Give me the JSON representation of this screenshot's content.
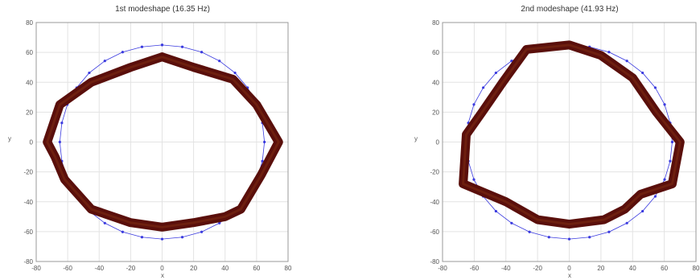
{
  "chart_data": [
    {
      "type": "line",
      "title": "1st modeshape (16.35 Hz)",
      "xlabel": "x",
      "ylabel": "y",
      "xlim": [
        -80,
        80
      ],
      "ylim": [
        -80,
        80
      ],
      "xticks": [
        -80,
        -60,
        -40,
        -20,
        0,
        20,
        40,
        60,
        80
      ],
      "yticks": [
        -80,
        -60,
        -40,
        -20,
        0,
        20,
        40,
        60,
        80
      ],
      "grid": true,
      "series": [
        {
          "role": "undeformed",
          "color": "#3a3adf",
          "marker": "dot",
          "x": [
            0,
            12.8,
            25.1,
            36.4,
            46.3,
            54.3,
            60.2,
            63.7,
            65,
            63.7,
            60.2,
            54.3,
            46.3,
            36.4,
            25.1,
            12.8,
            0,
            -12.8,
            -25.1,
            -36.4,
            -46.3,
            -54.3,
            -60.2,
            -63.7,
            -65,
            -63.7,
            -60.2,
            -54.3,
            -46.3,
            -36.4,
            -25.1,
            -12.8,
            0
          ],
          "y": [
            65,
            63.7,
            60.2,
            54.3,
            46.3,
            36.4,
            25.1,
            12.8,
            0,
            -12.8,
            -25.1,
            -36.4,
            -46.3,
            -54.3,
            -60.2,
            -63.7,
            -65,
            -63.7,
            -60.2,
            -54.3,
            -46.3,
            -36.4,
            -25.1,
            -12.8,
            0,
            12.8,
            25.1,
            36.4,
            46.3,
            54.3,
            60.2,
            63.7,
            65
          ]
        },
        {
          "role": "deformed",
          "color": "#5a0f0b",
          "x": [
            0,
            20,
            45,
            60,
            74,
            63,
            50,
            40,
            20,
            0,
            -20,
            -45,
            -62,
            -68,
            -73,
            -65,
            -45,
            -20,
            0
          ],
          "y": [
            57,
            50,
            42,
            25,
            0,
            -22,
            -45,
            -50,
            -54,
            -57,
            -54,
            -45,
            -25,
            -10,
            0,
            25,
            40,
            50,
            57
          ]
        }
      ]
    },
    {
      "type": "line",
      "title": "2nd modeshape (41.93 Hz)",
      "xlabel": "x",
      "ylabel": "y",
      "xlim": [
        -80,
        80
      ],
      "ylim": [
        -80,
        80
      ],
      "xticks": [
        -80,
        -60,
        -40,
        -20,
        0,
        20,
        40,
        60,
        80
      ],
      "yticks": [
        -80,
        -60,
        -40,
        -20,
        0,
        20,
        40,
        60,
        80
      ],
      "grid": true,
      "series": [
        {
          "role": "undeformed",
          "color": "#3a3adf",
          "marker": "dot",
          "x": [
            0,
            12.8,
            25.1,
            36.4,
            46.3,
            54.3,
            60.2,
            63.7,
            65,
            63.7,
            60.2,
            54.3,
            46.3,
            36.4,
            25.1,
            12.8,
            0,
            -12.8,
            -25.1,
            -36.4,
            -46.3,
            -54.3,
            -60.2,
            -63.7,
            -65,
            -63.7,
            -60.2,
            -54.3,
            -46.3,
            -36.4,
            -25.1,
            -12.8,
            0
          ],
          "y": [
            65,
            63.7,
            60.2,
            54.3,
            46.3,
            36.4,
            25.1,
            12.8,
            0,
            -12.8,
            -25.1,
            -36.4,
            -46.3,
            -54.3,
            -60.2,
            -63.7,
            -65,
            -63.7,
            -60.2,
            -54.3,
            -46.3,
            -36.4,
            -25.1,
            -12.8,
            0,
            12.8,
            25.1,
            36.4,
            46.3,
            54.3,
            60.2,
            63.7,
            65
          ]
        },
        {
          "role": "deformed",
          "color": "#5a0f0b",
          "x": [
            0,
            20,
            40,
            55,
            70,
            65,
            45,
            35,
            22,
            0,
            -20,
            -40,
            -67,
            -65,
            -55,
            -42,
            -27,
            0
          ],
          "y": [
            65,
            58,
            43,
            20,
            0,
            -28,
            -35,
            -45,
            -52,
            -55,
            -52,
            -40,
            -28,
            5,
            20,
            40,
            62,
            65
          ]
        }
      ]
    }
  ]
}
